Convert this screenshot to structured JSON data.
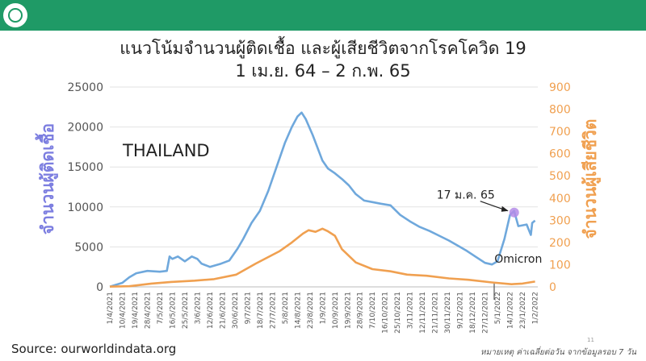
{
  "header": {
    "logo_icon": "ministry-of-public-health-logo-icon",
    "bar_color": "#1f9a66"
  },
  "title": {
    "line1": "แนวโน้มจำนวนผู้ติดเชื้อ และผู้เสียชีวิตจากโรคโควิด 19",
    "line2": "1 เม.ย. 64 – 2 ก.พ. 65"
  },
  "chart_data": {
    "type": "line",
    "country_label": "THAILAND",
    "ylabel_left": "จำนวนผู้ติดเชื้อ",
    "ylabel_right": "จำนวนผู้เสียชีวิต",
    "y_left_range": [
      0,
      25000
    ],
    "y_left_ticks": [
      "0",
      "5000",
      "10000",
      "15000",
      "20000",
      "25000"
    ],
    "y_right_range": [
      0,
      900
    ],
    "y_right_ticks": [
      "0",
      "100",
      "200",
      "300",
      "400",
      "500",
      "600",
      "700",
      "800",
      "900"
    ],
    "x_ticks": [
      "1/4/2021",
      "10/4/2021",
      "19/4/2021",
      "28/4/2021",
      "7/5/2021",
      "16/5/2021",
      "25/5/2021",
      "3/6/2021",
      "12/6/2021",
      "21/6/2021",
      "30/6/2021",
      "9/7/2021",
      "18/7/2021",
      "27/7/2021",
      "5/8/2021",
      "14/8/2021",
      "23/8/2021",
      "1/9/2021",
      "10/9/2021",
      "19/9/2021",
      "28/9/2021",
      "7/10/2021",
      "16/10/2021",
      "25/10/2021",
      "3/11/2021",
      "12/11/2021",
      "21/11/2021",
      "30/11/2021",
      "9/12/2021",
      "18/12/2021",
      "27/12/2021",
      "5/1/2022",
      "14/1/2022",
      "23/1/2022",
      "1/2/2022"
    ],
    "grid": true,
    "series": [
      {
        "axis": "left",
        "color": "#6fa8dc",
        "x": [
          "2021-04-01",
          "2021-04-10",
          "2021-04-15",
          "2021-04-20",
          "2021-04-28",
          "2021-05-07",
          "2021-05-12",
          "2021-05-14",
          "2021-05-16",
          "2021-05-20",
          "2021-05-25",
          "2021-05-30",
          "2021-06-03",
          "2021-06-06",
          "2021-06-12",
          "2021-06-20",
          "2021-06-26",
          "2021-07-02",
          "2021-07-06",
          "2021-07-12",
          "2021-07-18",
          "2021-07-24",
          "2021-07-30",
          "2021-08-05",
          "2021-08-10",
          "2021-08-14",
          "2021-08-17",
          "2021-08-20",
          "2021-08-25",
          "2021-09-01",
          "2021-09-05",
          "2021-09-10",
          "2021-09-15",
          "2021-09-20",
          "2021-09-25",
          "2021-10-01",
          "2021-10-07",
          "2021-10-13",
          "2021-10-20",
          "2021-10-27",
          "2021-11-03",
          "2021-11-10",
          "2021-11-17",
          "2021-11-24",
          "2021-12-01",
          "2021-12-09",
          "2021-12-14",
          "2021-12-20",
          "2021-12-27",
          "2022-01-01",
          "2022-01-05",
          "2022-01-10",
          "2022-01-14",
          "2022-01-17",
          "2022-01-20",
          "2022-01-23",
          "2022-01-26",
          "2022-01-29",
          "2022-01-30",
          "2022-02-01"
        ],
        "y": [
          30,
          500,
          1200,
          1700,
          2000,
          1900,
          2000,
          3800,
          3500,
          3800,
          3200,
          3800,
          3500,
          2900,
          2500,
          2900,
          3300,
          4800,
          6000,
          8000,
          9500,
          12000,
          15000,
          18000,
          20000,
          21300,
          21800,
          21000,
          19000,
          15800,
          14800,
          14200,
          13500,
          12700,
          11600,
          10800,
          10600,
          10400,
          10200,
          9000,
          8200,
          7500,
          7000,
          6400,
          5800,
          5000,
          4500,
          3800,
          3000,
          2800,
          3200,
          6000,
          9000,
          9500,
          7600,
          7700,
          7800,
          6500,
          8000,
          8300
        ]
      },
      {
        "axis": "right",
        "color": "#f0a050",
        "x": [
          "2021-04-01",
          "2021-04-15",
          "2021-05-01",
          "2021-05-15",
          "2021-06-01",
          "2021-06-15",
          "2021-07-01",
          "2021-07-15",
          "2021-08-01",
          "2021-08-10",
          "2021-08-18",
          "2021-08-22",
          "2021-08-27",
          "2021-09-01",
          "2021-09-05",
          "2021-09-10",
          "2021-09-15",
          "2021-09-25",
          "2021-10-07",
          "2021-10-20",
          "2021-11-01",
          "2021-11-15",
          "2021-12-01",
          "2021-12-15",
          "2022-01-01",
          "2022-01-15",
          "2022-01-23",
          "2022-02-01"
        ],
        "y": [
          1,
          3,
          15,
          22,
          28,
          35,
          55,
          105,
          160,
          200,
          240,
          255,
          248,
          262,
          250,
          230,
          170,
          110,
          80,
          70,
          55,
          50,
          38,
          32,
          20,
          12,
          15,
          24
        ]
      }
    ],
    "annotations": [
      {
        "text": "17 ม.ค. 65",
        "x": "2022-01-17",
        "y": 9300,
        "marker_color": "#b48ce8"
      },
      {
        "text": "Omicron",
        "x": "2022-01-01"
      }
    ]
  },
  "footer": {
    "source": "Source: ourworldindata.org",
    "note": "หมายเหตุ ค่าเฉลี่ยต่อวัน จากข้อมูลรอบ 7 วัน",
    "slide_number": "11"
  }
}
